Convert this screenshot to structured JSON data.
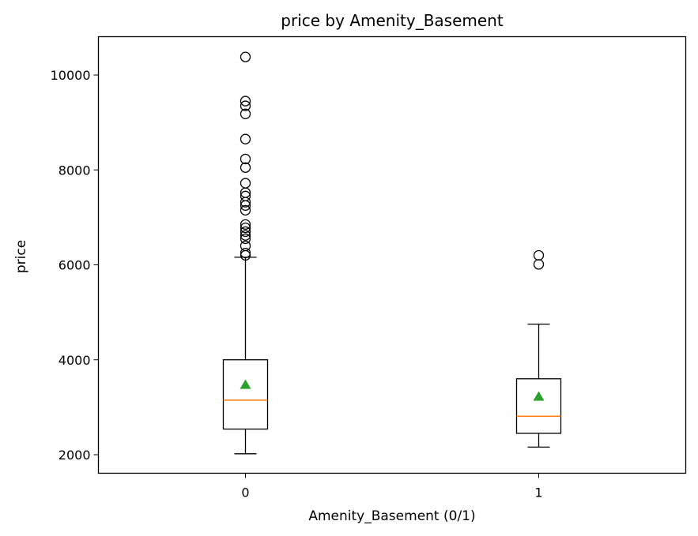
{
  "chart_data": {
    "type": "box",
    "title": "price by Amenity_Basement",
    "xlabel": "Amenity_Basement (0/1)",
    "ylabel": "price",
    "categories": [
      "0",
      "1"
    ],
    "ylim": [
      1600,
      10800
    ],
    "yticks": [
      2000,
      4000,
      6000,
      8000,
      10000
    ],
    "grid": false,
    "colors": {
      "median": "#ff7f0e",
      "mean": "#2ca02c",
      "box": "#000000"
    },
    "boxes": [
      {
        "category": "0",
        "whisker_low": 2020,
        "q1": 2540,
        "median": 3150,
        "q3": 4000,
        "whisker_high": 6160,
        "mean": 3470,
        "outliers": [
          6200,
          6250,
          6400,
          6550,
          6620,
          6700,
          6780,
          6850,
          7150,
          7250,
          7320,
          7450,
          7520,
          7720,
          8050,
          8230,
          8650,
          9180,
          9350,
          9450,
          10380
        ]
      },
      {
        "category": "1",
        "whisker_low": 2160,
        "q1": 2450,
        "median": 2810,
        "q3": 3600,
        "whisker_high": 4750,
        "mean": 3220,
        "outliers": [
          6010,
          6200
        ]
      }
    ]
  }
}
